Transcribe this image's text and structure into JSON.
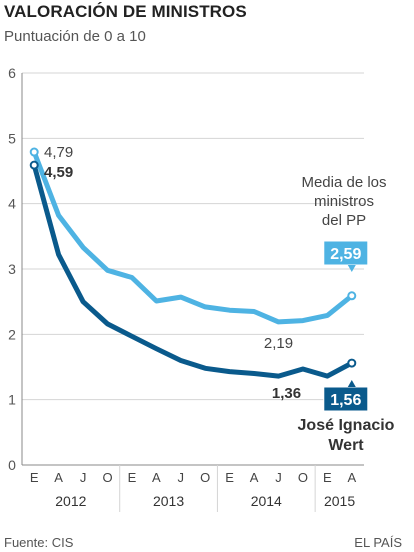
{
  "header": {
    "title": "VALORACIÓN DE MINISTROS",
    "subtitle": "Puntuación de 0 a 10"
  },
  "footer": {
    "source": "Fuente: CIS",
    "brand": "EL PAÍS"
  },
  "colors": {
    "media_pp": "#4eb3e3",
    "wert": "#0a5a8c",
    "grid": "#d4d4d4",
    "axis": "#888888"
  },
  "chart_data": {
    "type": "line",
    "ylim": [
      0,
      6
    ],
    "yticks": [
      0,
      1,
      2,
      3,
      4,
      5,
      6
    ],
    "grid": true,
    "x_month_labels": [
      "E",
      "A",
      "J",
      "O",
      "E",
      "A",
      "J",
      "O",
      "E",
      "A",
      "J",
      "O",
      "E",
      "A"
    ],
    "x_year_labels": [
      "2012",
      "2013",
      "2014",
      "2015"
    ],
    "series": [
      {
        "name": "Media de los ministros del PP",
        "color": "#4eb3e3",
        "values": [
          4.79,
          3.82,
          3.33,
          2.98,
          2.87,
          2.51,
          2.57,
          2.42,
          2.37,
          2.35,
          2.19,
          2.21,
          2.29,
          2.59
        ],
        "start_label": "4,79",
        "min_label": "2,19",
        "end_label": "2,59"
      },
      {
        "name": "José Ignacio Wert",
        "color": "#0a5a8c",
        "values": [
          4.59,
          3.22,
          2.5,
          2.16,
          1.97,
          1.78,
          1.6,
          1.48,
          1.43,
          1.4,
          1.36,
          1.47,
          1.36,
          1.56
        ],
        "start_label": "4,59",
        "min_label": "1,36",
        "end_label": "1,56"
      }
    ]
  }
}
